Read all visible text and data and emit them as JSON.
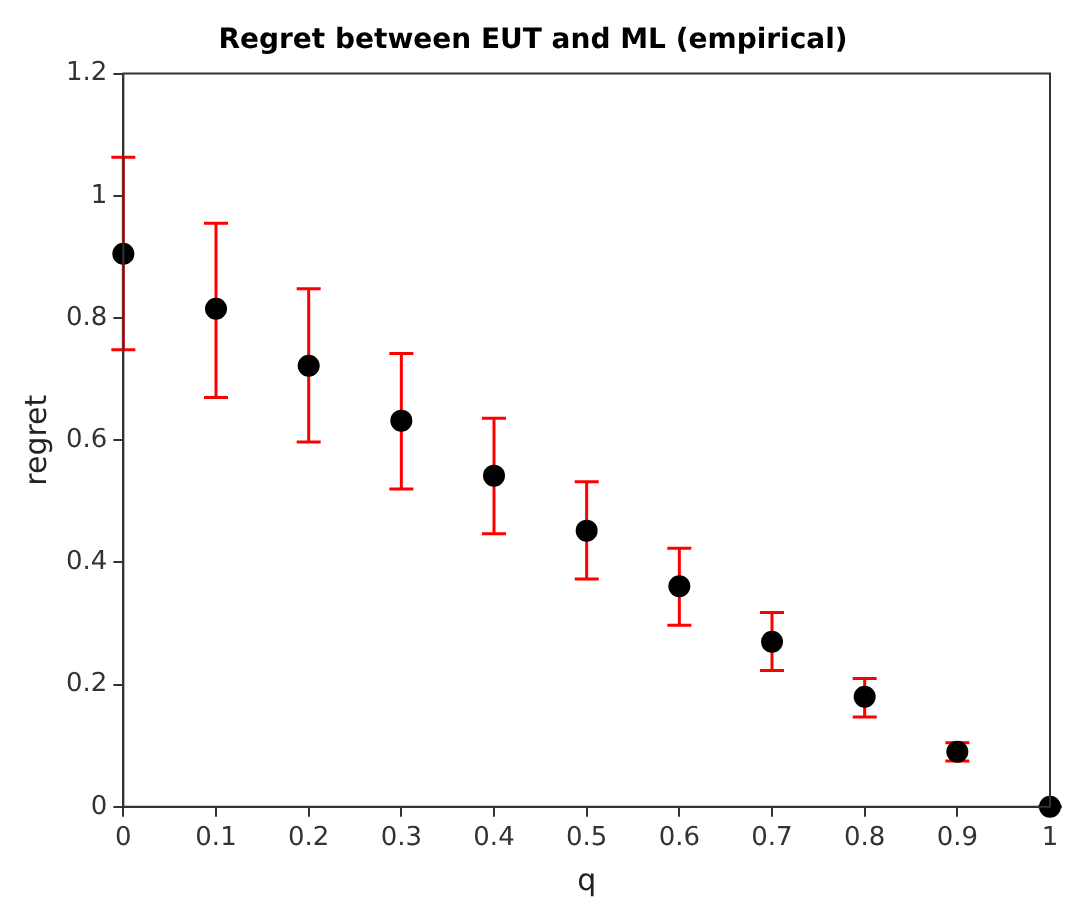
{
  "chart_data": {
    "type": "scatter",
    "title": "Regret between EUT and ML (empirical)",
    "xlabel": "q",
    "ylabel": "regret",
    "x": [
      0,
      0.1,
      0.2,
      0.3,
      0.4,
      0.5,
      0.6,
      0.7,
      0.8,
      0.9,
      1
    ],
    "series": [
      {
        "color": "#000000",
        "values": [
          0.905,
          0.815,
          0.722,
          0.632,
          0.542,
          0.452,
          0.361,
          0.27,
          0.18,
          0.09,
          0
        ],
        "errors": [
          [
            0.748,
            1.063
          ],
          [
            0.67,
            0.955
          ],
          [
            0.597,
            0.848
          ],
          [
            0.52,
            0.742
          ],
          [
            0.447,
            0.636
          ],
          [
            0.373,
            0.532
          ],
          [
            0.297,
            0.423
          ],
          [
            0.223,
            0.318
          ],
          [
            0.147,
            0.21
          ],
          [
            0.075,
            0.105
          ],
          [
            0,
            0
          ]
        ]
      }
    ],
    "marker": "circle",
    "grid": false,
    "legend": false,
    "xlim": [
      0,
      1
    ],
    "xticks": [
      0,
      0.1,
      0.2,
      0.3,
      0.4,
      0.5,
      0.6,
      0.7,
      0.8,
      0.9,
      1
    ],
    "ylim": [
      0,
      1.2
    ],
    "yticks": [
      0,
      0.2,
      0.4,
      0.6,
      0.8,
      1,
      1.2
    ]
  }
}
